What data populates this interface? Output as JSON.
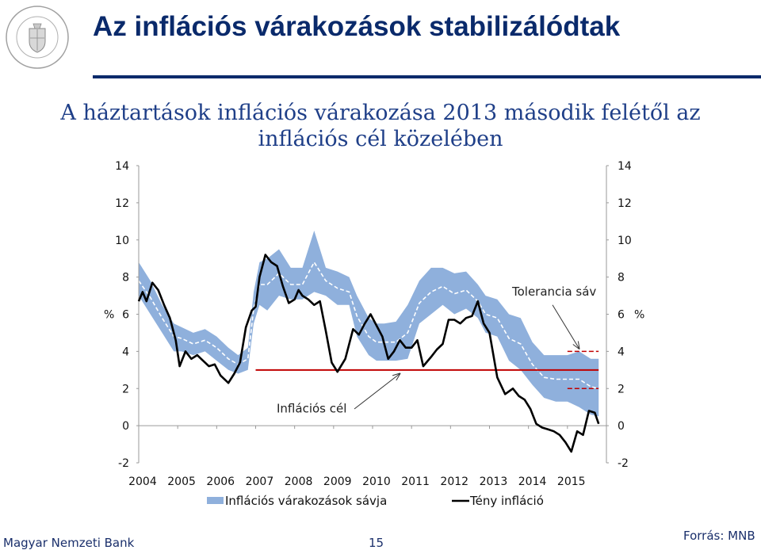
{
  "header": {
    "title": "Az inflációs várakozások stabilizálódtak",
    "logo_text": "MAGYAR NEMZETI BANK"
  },
  "footer": {
    "bank": "Magyar Nemzeti Bank",
    "page": "15",
    "source": "Forrás: MNB"
  },
  "colors": {
    "title": "#0a2a6b",
    "band": "#8fb0dc",
    "band_mid": "#ffffff",
    "actual": "#000000",
    "target": "#c00000",
    "tolerance": "#c00000"
  },
  "chart_data": {
    "type": "line",
    "title": "A háztartások inflációs várakozása 2013 második felétől az inflációs cél közelében",
    "ylim": [
      -2,
      14
    ],
    "yticks": [
      "-2",
      "0",
      "2",
      "4",
      "6",
      "8",
      "10",
      "12",
      "14"
    ],
    "y_unit_left": "%",
    "y_unit_right": "%",
    "x_tick_labels": [
      "2004",
      "2005",
      "2006",
      "2007",
      "2008",
      "2009",
      "2010",
      "2011",
      "2012",
      "2013",
      "2014",
      "2015"
    ],
    "x_range": [
      2004.0,
      2016.0
    ],
    "grid": false,
    "legend_position": "bottom",
    "legend": [
      "Inflációs várakozások sávja",
      "Tény infláció"
    ],
    "annotations": {
      "target_label": "Inflációs cél",
      "tolerance_label": "Tolerancia sáv"
    },
    "inflation_target": {
      "value": 3.0,
      "from": 2007.0,
      "to": 2015.8
    },
    "tolerance_band": {
      "upper": 4.0,
      "lower": 2.0,
      "from": 2015.0,
      "to": 2015.8
    },
    "series": [
      {
        "name": "Inflációs várakozások sávja",
        "x": [
          2004.0,
          2004.3,
          2004.6,
          2004.9,
          2005.1,
          2005.4,
          2005.7,
          2006.0,
          2006.3,
          2006.55,
          2006.8,
          2006.95,
          2007.1,
          2007.3,
          2007.6,
          2007.9,
          2008.2,
          2008.5,
          2008.8,
          2009.1,
          2009.4,
          2009.6,
          2009.9,
          2010.1,
          2010.3,
          2010.6,
          2010.9,
          2011.2,
          2011.5,
          2011.8,
          2012.1,
          2012.4,
          2012.7,
          2012.9,
          2013.2,
          2013.5,
          2013.8,
          2014.1,
          2014.4,
          2014.7,
          2015.0,
          2015.3,
          2015.6,
          2015.8
        ],
        "upper": [
          8.8,
          7.8,
          6.5,
          5.5,
          5.3,
          5.0,
          5.2,
          4.8,
          4.2,
          3.8,
          4.2,
          7.2,
          8.8,
          9.0,
          9.5,
          8.5,
          8.5,
          10.5,
          8.5,
          8.3,
          8.0,
          7.0,
          5.8,
          5.5,
          5.5,
          5.6,
          6.5,
          7.8,
          8.5,
          8.5,
          8.2,
          8.3,
          7.6,
          7.0,
          6.8,
          6.0,
          5.8,
          4.5,
          3.8,
          3.8,
          3.8,
          4.0,
          3.6,
          3.6
        ],
        "lower": [
          7.0,
          6.0,
          5.0,
          4.0,
          4.0,
          3.8,
          4.0,
          3.5,
          3.0,
          2.8,
          3.0,
          5.5,
          6.5,
          6.2,
          7.0,
          6.8,
          6.8,
          7.2,
          7.0,
          6.5,
          6.5,
          4.8,
          3.8,
          3.5,
          3.5,
          3.5,
          3.6,
          5.5,
          6.0,
          6.5,
          6.0,
          6.3,
          5.8,
          5.0,
          4.8,
          3.5,
          3.0,
          2.2,
          1.5,
          1.3,
          1.3,
          1.0,
          0.6,
          0.5
        ],
        "mid": [
          7.8,
          6.9,
          5.8,
          4.8,
          4.7,
          4.4,
          4.6,
          4.2,
          3.6,
          3.3,
          3.6,
          6.3,
          7.6,
          7.6,
          8.2,
          7.6,
          7.6,
          8.8,
          7.8,
          7.4,
          7.2,
          5.9,
          4.8,
          4.5,
          4.5,
          4.5,
          5.0,
          6.6,
          7.2,
          7.5,
          7.1,
          7.3,
          6.7,
          6.0,
          5.8,
          4.7,
          4.4,
          3.3,
          2.6,
          2.5,
          2.5,
          2.5,
          2.1,
          2.0
        ]
      },
      {
        "name": "Tény infláció",
        "x": [
          2004.0,
          2004.1,
          2004.2,
          2004.35,
          2004.5,
          2004.65,
          2004.8,
          2004.95,
          2005.05,
          2005.2,
          2005.35,
          2005.5,
          2005.65,
          2005.8,
          2005.95,
          2006.1,
          2006.3,
          2006.45,
          2006.6,
          2006.75,
          2006.9,
          2007.0,
          2007.1,
          2007.25,
          2007.4,
          2007.55,
          2007.7,
          2007.85,
          2008.0,
          2008.1,
          2008.2,
          2008.35,
          2008.5,
          2008.65,
          2008.8,
          2008.95,
          2009.1,
          2009.3,
          2009.5,
          2009.65,
          2009.8,
          2009.95,
          2010.1,
          2010.25,
          2010.4,
          2010.55,
          2010.7,
          2010.85,
          2011.0,
          2011.15,
          2011.3,
          2011.5,
          2011.65,
          2011.8,
          2011.95,
          2012.1,
          2012.25,
          2012.4,
          2012.55,
          2012.7,
          2012.85,
          2013.0,
          2013.2,
          2013.4,
          2013.6,
          2013.75,
          2013.9,
          2014.05,
          2014.2,
          2014.35,
          2014.5,
          2014.65,
          2014.8,
          2014.95,
          2015.1,
          2015.25,
          2015.4,
          2015.55,
          2015.7,
          2015.8
        ],
        "y": [
          6.7,
          7.2,
          6.7,
          7.7,
          7.3,
          6.5,
          5.8,
          4.6,
          3.2,
          4.0,
          3.6,
          3.8,
          3.5,
          3.2,
          3.3,
          2.7,
          2.3,
          2.8,
          3.4,
          5.3,
          6.2,
          6.4,
          8.0,
          9.2,
          8.8,
          8.6,
          7.5,
          6.6,
          6.8,
          7.3,
          7.0,
          6.8,
          6.5,
          6.7,
          5.1,
          3.4,
          2.9,
          3.6,
          5.2,
          4.9,
          5.5,
          6.0,
          5.4,
          4.8,
          3.6,
          4.0,
          4.6,
          4.2,
          4.2,
          4.6,
          3.2,
          3.7,
          4.1,
          4.4,
          5.7,
          5.7,
          5.5,
          5.8,
          5.9,
          6.7,
          5.5,
          5.0,
          2.6,
          1.7,
          2.0,
          1.6,
          1.4,
          0.9,
          0.1,
          -0.1,
          -0.2,
          -0.3,
          -0.5,
          -0.9,
          -1.4,
          -0.3,
          -0.5,
          0.8,
          0.7,
          0.1
        ]
      }
    ]
  }
}
